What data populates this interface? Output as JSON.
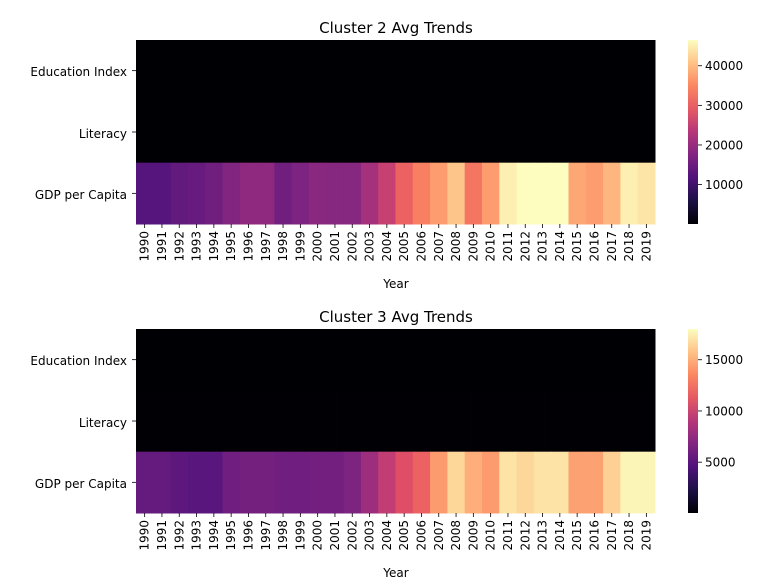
{
  "chart_data": [
    {
      "type": "heatmap",
      "title": "Cluster 2 Avg Trends",
      "xlabel": "Year",
      "ylabel": "",
      "rows": [
        "Education Index",
        "Literacy",
        "GDP per Capita"
      ],
      "columns": [
        "1990",
        "1991",
        "1992",
        "1993",
        "1994",
        "1995",
        "1996",
        "1997",
        "1998",
        "1999",
        "2000",
        "2001",
        "2002",
        "2003",
        "2004",
        "2005",
        "2006",
        "2007",
        "2008",
        "2009",
        "2010",
        "2011",
        "2012",
        "2013",
        "2014",
        "2015",
        "2016",
        "2017",
        "2018",
        "2019"
      ],
      "values": [
        [
          0.6,
          0.6,
          0.6,
          0.6,
          0.6,
          0.6,
          0.6,
          0.6,
          0.6,
          0.6,
          0.6,
          0.6,
          0.6,
          0.6,
          0.6,
          0.6,
          0.6,
          0.6,
          0.6,
          0.6,
          0.6,
          0.6,
          0.6,
          0.6,
          0.6,
          0.6,
          0.6,
          0.6,
          0.6,
          0.6
        ],
        [
          80,
          80,
          80,
          80,
          80,
          80,
          80,
          80,
          80,
          80,
          80,
          80,
          80,
          80,
          80,
          80,
          80,
          80,
          80,
          80,
          80,
          80,
          80,
          80,
          80,
          80,
          80,
          80,
          80,
          80
        ],
        [
          12500,
          12500,
          14000,
          14500,
          15500,
          17500,
          19000,
          19000,
          15500,
          17000,
          18500,
          18000,
          18000,
          21500,
          25500,
          31000,
          34000,
          37000,
          41000,
          33000,
          37000,
          45000,
          48000,
          48000,
          47000,
          38000,
          37000,
          39500,
          45000,
          44000
        ]
      ],
      "colormap": "magma",
      "vmin": 50,
      "vmax": 46500,
      "colorbar_ticks": [
        10000,
        20000,
        30000,
        40000
      ]
    },
    {
      "type": "heatmap",
      "title": "Cluster 3 Avg Trends",
      "xlabel": "Year",
      "ylabel": "",
      "rows": [
        "Education Index",
        "Literacy",
        "GDP per Capita"
      ],
      "columns": [
        "1990",
        "1991",
        "1992",
        "1993",
        "1994",
        "1995",
        "1996",
        "1997",
        "1998",
        "1999",
        "2000",
        "2001",
        "2002",
        "2003",
        "2004",
        "2005",
        "2006",
        "2007",
        "2008",
        "2009",
        "2010",
        "2011",
        "2012",
        "2013",
        "2014",
        "2015",
        "2016",
        "2017",
        "2018",
        "2019"
      ],
      "values": [
        [
          0.6,
          0.6,
          0.6,
          0.6,
          0.6,
          0.6,
          0.6,
          0.6,
          0.6,
          0.6,
          0.6,
          0.6,
          0.6,
          0.6,
          0.6,
          0.6,
          0.6,
          0.6,
          0.6,
          0.6,
          0.6,
          0.6,
          0.6,
          0.6,
          0.6,
          0.6,
          0.6,
          0.6,
          0.6,
          0.6
        ],
        [
          80,
          80,
          80,
          80,
          80,
          80,
          80,
          80,
          80,
          80,
          80,
          80,
          80,
          80,
          80,
          80,
          80,
          80,
          80,
          80,
          80,
          80,
          80,
          80,
          80,
          80,
          80,
          80,
          80,
          80
        ],
        [
          5500,
          5500,
          5200,
          5000,
          5000,
          6000,
          6200,
          6200,
          6000,
          6000,
          6100,
          6100,
          6600,
          8000,
          9600,
          11000,
          12000,
          14300,
          16500,
          15000,
          14300,
          17000,
          16500,
          17000,
          17000,
          14500,
          14500,
          16300,
          17700,
          17700
        ]
      ],
      "colormap": "magma",
      "vmin": 40,
      "vmax": 18000,
      "colorbar_ticks": [
        5000,
        10000,
        15000
      ]
    }
  ]
}
